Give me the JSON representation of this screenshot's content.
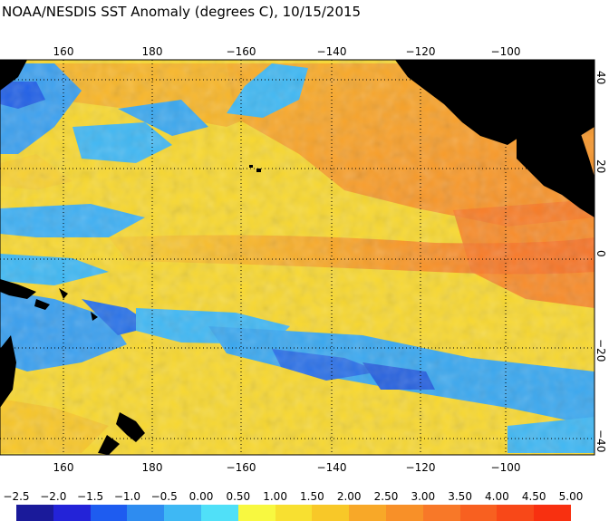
{
  "title": "NOAA/NESDIS SST Anomaly (degrees C), 10/15/2015",
  "map": {
    "lon_labels_top": [
      "160",
      "180",
      "−160",
      "−140",
      "−120",
      "−100"
    ],
    "lon_labels_bottom": [
      "160",
      "180",
      "−160",
      "−140",
      "−120",
      "−100"
    ],
    "lat_labels": [
      "40",
      "20",
      "0",
      "−20",
      "−40"
    ],
    "grid": true,
    "grid_color": "#000000",
    "land_color": "#000000"
  },
  "colorbar": {
    "labels": [
      "−2.5",
      "−2.0",
      "−1.5",
      "−1.0",
      "−0.5",
      "0.00",
      "0.50",
      "1.00",
      "1.50",
      "2.00",
      "2.50",
      "3.00",
      "3.50",
      "4.00",
      "4.50",
      "5.00"
    ],
    "colors": [
      "#1a1a9a",
      "#2323d8",
      "#1e5cf0",
      "#2e8cf0",
      "#3eb8f4",
      "#50e0f8",
      "#f8f840",
      "#f8e030",
      "#f8c828",
      "#f8a828",
      "#f89028",
      "#f87828",
      "#f86020",
      "#f84818",
      "#f83010"
    ]
  }
}
